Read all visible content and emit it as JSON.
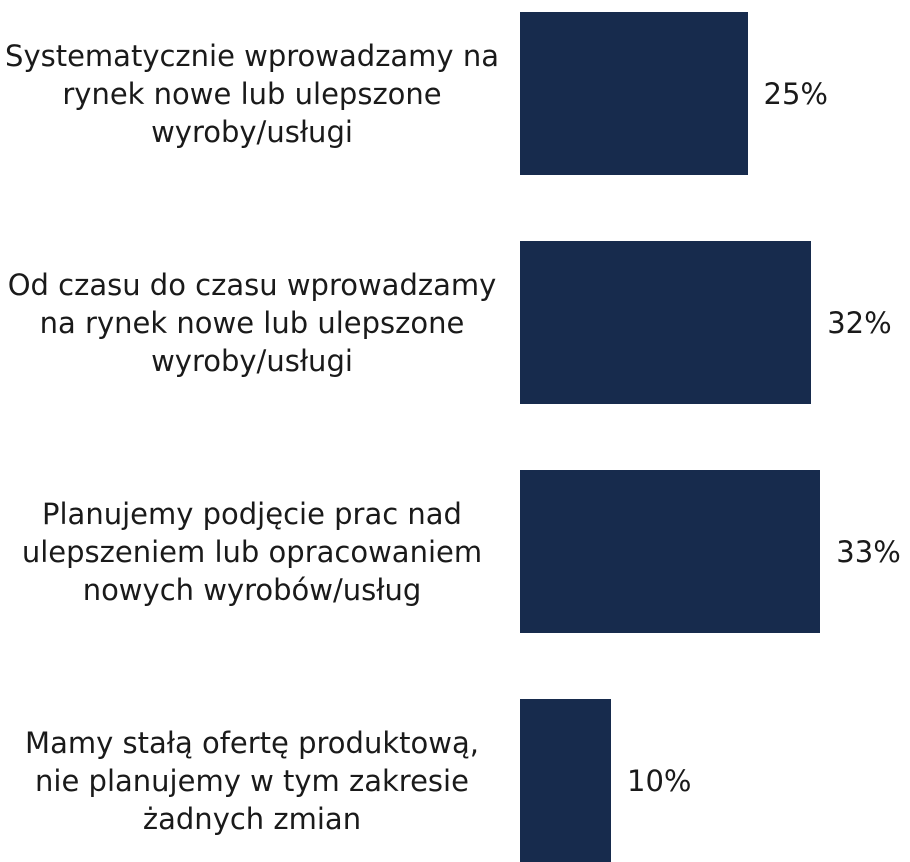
{
  "chart_data": {
    "type": "bar",
    "orientation": "horizontal",
    "color": "#172b4d",
    "categories": [
      "Systematycznie wprowadzamy na rynek nowe lub ulepszone wyroby/usługi",
      "Od czasu do czasu wprowadzamy na rynek nowe lub ulepszone wyroby/usługi",
      "Planujemy podjęcie prac nad ulepszeniem lub opracowaniem nowych wyrobów/usług",
      "Mamy stałą ofertę produktową, nie planujemy w tym zakresie żadnych zmian"
    ],
    "values": [
      25,
      32,
      33,
      10
    ],
    "value_labels": [
      "25%",
      "32%",
      "33%",
      "10%"
    ]
  }
}
